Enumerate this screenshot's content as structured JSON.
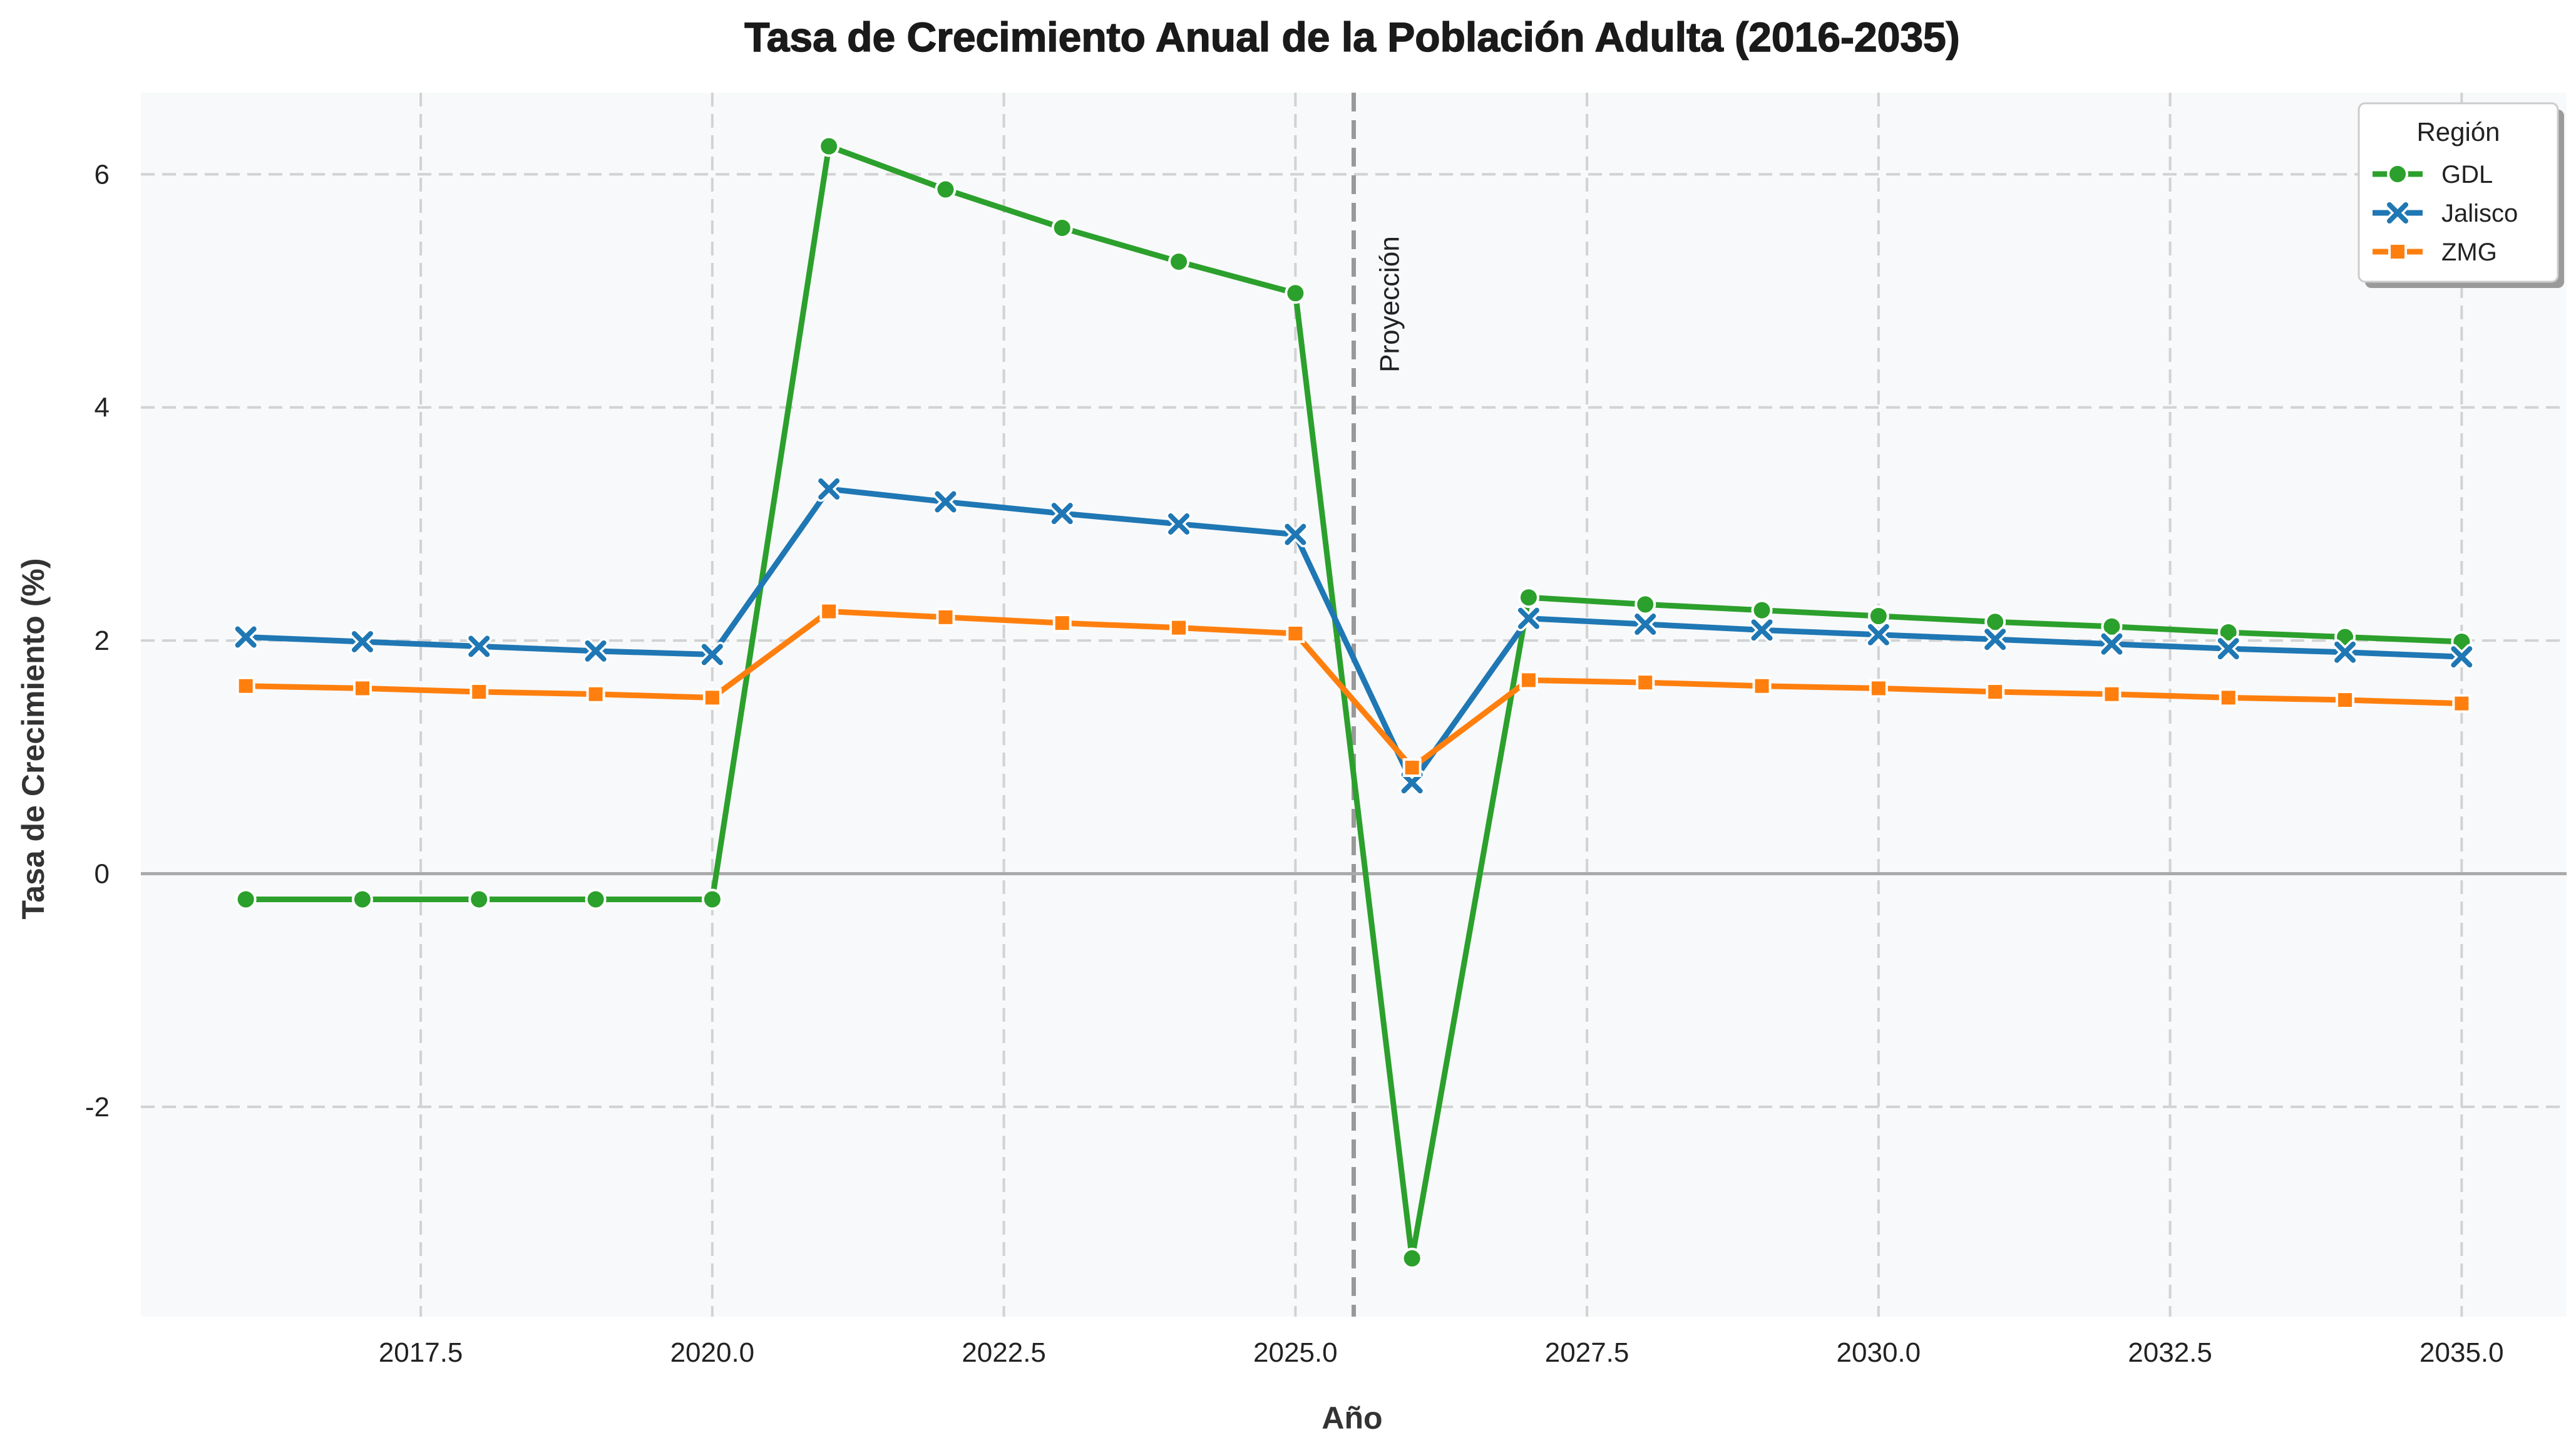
{
  "chart_data": {
    "type": "line",
    "title": "Tasa de Crecimiento Anual de la Población Adulta (2016-2035)",
    "xlabel": "Año",
    "ylabel": "Tasa de Crecimiento (%)",
    "xlim": [
      2015.1,
      2035.9
    ],
    "ylim": [
      -3.8,
      6.7
    ],
    "xticks": [
      2017.5,
      2020.0,
      2022.5,
      2025.0,
      2027.5,
      2030.0,
      2032.5,
      2035.0
    ],
    "xtick_labels": [
      "2017.5",
      "2020.0",
      "2022.5",
      "2025.0",
      "2027.5",
      "2030.0",
      "2032.5",
      "2035.0"
    ],
    "yticks": [
      -2,
      0,
      2,
      4,
      6
    ],
    "ytick_labels": [
      "-2",
      "0",
      "2",
      "4",
      "6"
    ],
    "grid": true,
    "legend": {
      "title": "Región",
      "placement": "top-right"
    },
    "x": [
      2016,
      2017,
      2018,
      2019,
      2020,
      2021,
      2022,
      2023,
      2024,
      2025,
      2026,
      2027,
      2028,
      2029,
      2030,
      2031,
      2032,
      2033,
      2034,
      2035
    ],
    "series": [
      {
        "name": "GDL",
        "color": "#2ca02c",
        "marker": "circle",
        "values": [
          -0.22,
          -0.22,
          -0.22,
          -0.22,
          -0.22,
          6.24,
          5.87,
          5.54,
          5.25,
          4.98,
          -3.3,
          2.37,
          2.31,
          2.26,
          2.21,
          2.16,
          2.12,
          2.07,
          2.03,
          1.99
        ]
      },
      {
        "name": "Jalisco",
        "color": "#1f77b4",
        "marker": "x",
        "values": [
          2.03,
          1.99,
          1.95,
          1.91,
          1.88,
          3.3,
          3.19,
          3.09,
          3.0,
          2.91,
          0.78,
          2.19,
          2.14,
          2.09,
          2.05,
          2.01,
          1.97,
          1.93,
          1.9,
          1.86
        ]
      },
      {
        "name": "ZMG",
        "color": "#ff7f0e",
        "marker": "square",
        "values": [
          1.61,
          1.59,
          1.56,
          1.54,
          1.51,
          2.25,
          2.2,
          2.15,
          2.11,
          2.06,
          0.91,
          1.66,
          1.64,
          1.61,
          1.59,
          1.56,
          1.54,
          1.51,
          1.49,
          1.46
        ]
      }
    ],
    "reference_lines": [
      {
        "type": "vertical",
        "x": 2025.5,
        "color": "#999999",
        "label": "Proyección"
      },
      {
        "type": "horizontal",
        "y": 0,
        "color": "#aaaaaa"
      }
    ]
  }
}
